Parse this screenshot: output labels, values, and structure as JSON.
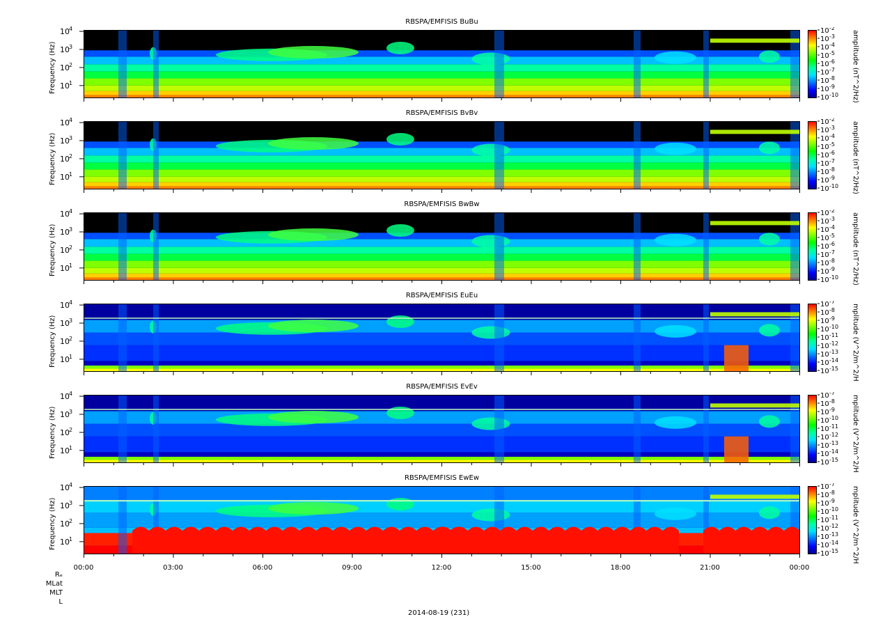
{
  "chart_data": {
    "type": "heatmap",
    "date_label": "2014-08-19 (231)",
    "x_tick_labels": [
      "00:00",
      "03:00",
      "06:00",
      "09:00",
      "12:00",
      "15:00",
      "18:00",
      "21:00",
      "00:00"
    ],
    "ephemeris_labels": [
      "Rₑ",
      "MLat",
      "MLT",
      "L"
    ],
    "y_axis": {
      "label": "Frequency (Hz)",
      "scale": "log",
      "ylim": [
        2,
        12000
      ],
      "tick_labels": [
        [
          "10",
          "1"
        ],
        [
          "10",
          "2"
        ],
        [
          "10",
          "3"
        ],
        [
          "10",
          "4"
        ]
      ]
    },
    "panels": [
      {
        "title": "RBSPA/EMFISIS  BuBu",
        "colorbar_label": "amplitude (nT^2/Hz)",
        "colorbar_ticks": [
          "-2",
          "-3",
          "-4",
          "-5",
          "-6",
          "-7",
          "-8",
          "-9",
          "-10"
        ],
        "kind": "B"
      },
      {
        "title": "RBSPA/EMFISIS  BvBv",
        "colorbar_label": "amplitude (nT^2/Hz)",
        "colorbar_ticks": [
          "-2",
          "-3",
          "-4",
          "-5",
          "-6",
          "-7",
          "-8",
          "-9",
          "-10"
        ],
        "kind": "B"
      },
      {
        "title": "RBSPA/EMFISIS  BwBw",
        "colorbar_label": "amplitude (nT^2/Hz)",
        "colorbar_ticks": [
          "-2",
          "-3",
          "-4",
          "-5",
          "-6",
          "-7",
          "-8",
          "-9",
          "-10"
        ],
        "kind": "Bw"
      },
      {
        "title": "RBSPA/EMFISIS  EuEu",
        "colorbar_label": "mplitude (V^2/m^2/H",
        "colorbar_ticks": [
          "-7",
          "-8",
          "-9",
          "-10",
          "-11",
          "-12",
          "-13",
          "-14",
          "-15"
        ],
        "kind": "E"
      },
      {
        "title": "RBSPA/EMFISIS  EvEv",
        "colorbar_label": "mplitude (V^2/m^2/H",
        "colorbar_ticks": [
          "-7",
          "-8",
          "-9",
          "-10",
          "-11",
          "-12",
          "-13",
          "-14",
          "-15"
        ],
        "kind": "E"
      },
      {
        "title": "RBSPA/EMFISIS  EwEw",
        "colorbar_label": "mplitude (V^2/m^2/H",
        "colorbar_ticks": [
          "-7",
          "-8",
          "-9",
          "-10",
          "-11",
          "-12",
          "-13",
          "-14",
          "-15"
        ],
        "kind": "Ew"
      }
    ],
    "colormap": [
      "#ff0000",
      "#ff8000",
      "#ffff00",
      "#80ff00",
      "#00ff00",
      "#00ffa0",
      "#00e0ff",
      "#0070ff",
      "#0000ff",
      "#000090"
    ]
  }
}
